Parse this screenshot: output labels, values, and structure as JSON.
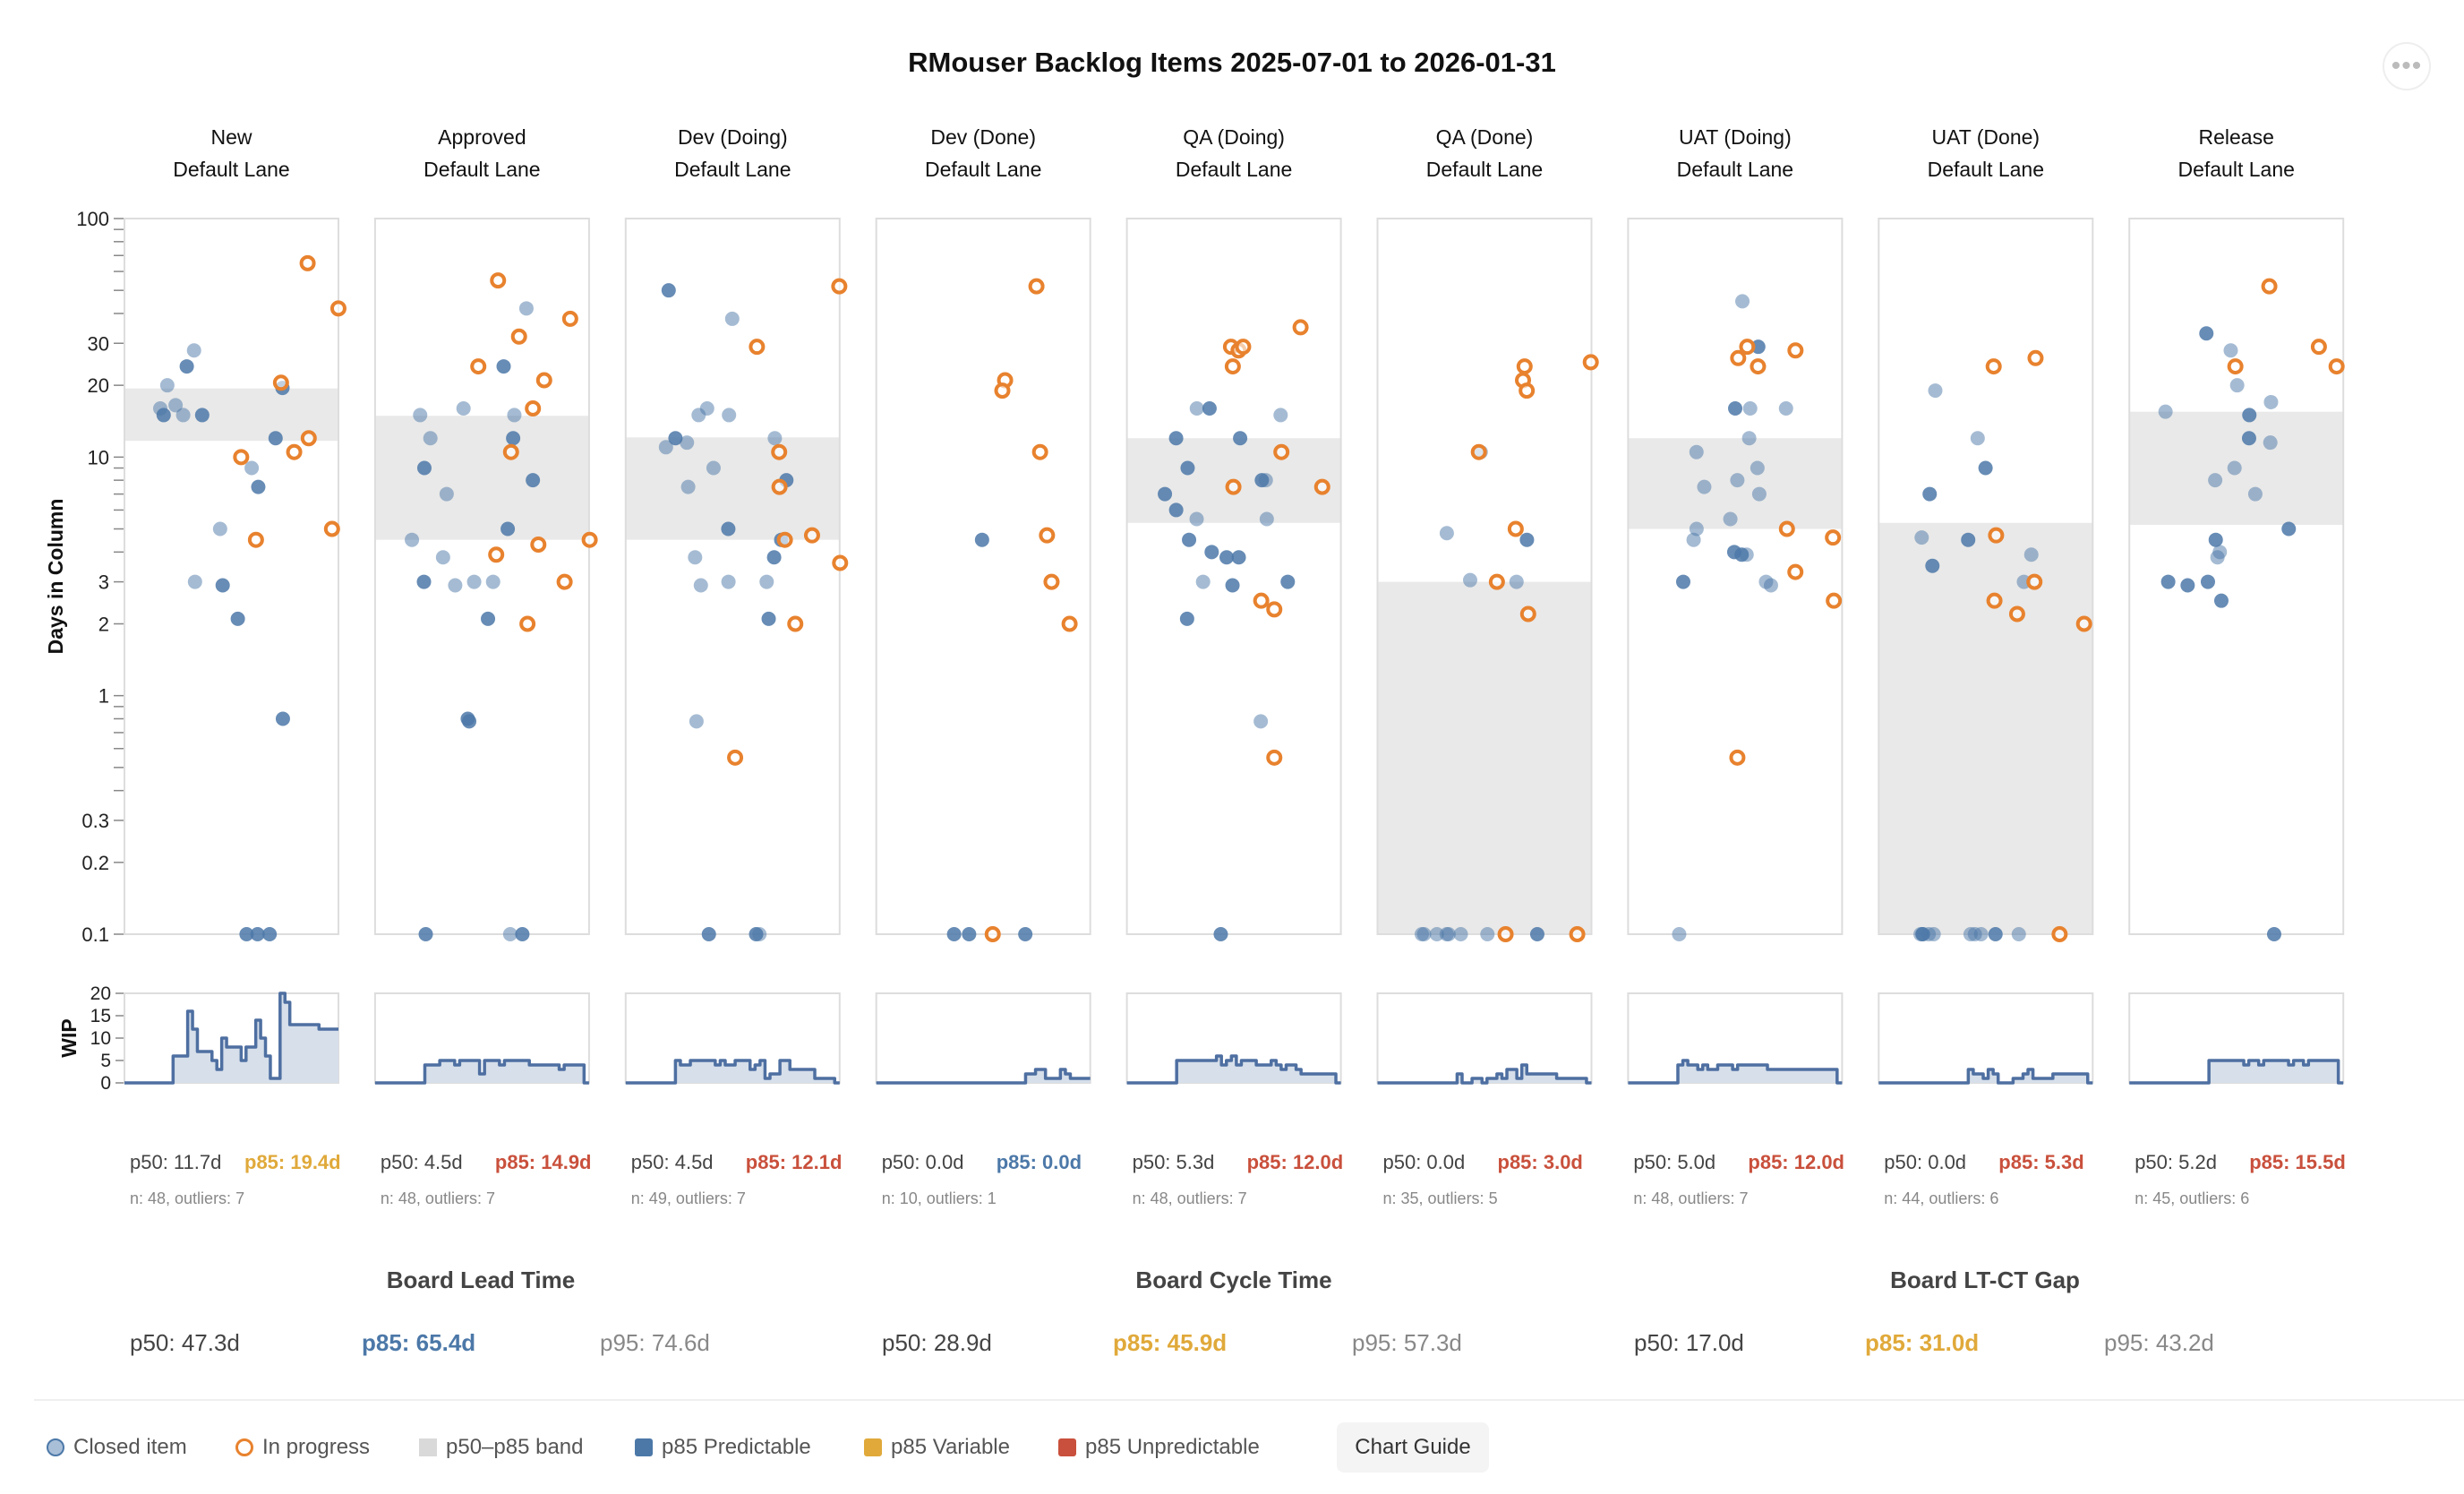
{
  "chart_data": {
    "type": "scatter",
    "title": "RMouser Backlog Items 2025-07-01 to 2026-01-31",
    "ylabel": "Days in Column",
    "yscale": "log",
    "ylim": [
      0.1,
      100
    ],
    "yticks": [
      "100",
      "30",
      "20",
      "10",
      "3",
      "2",
      "1",
      "0.3",
      "0.2",
      "0.1"
    ],
    "wip_label": "WIP",
    "wip_ylim": [
      0,
      20
    ],
    "wip_ticks": [
      "20",
      "15",
      "10",
      "5",
      "0"
    ],
    "colors": {
      "closed": "#4c78a8",
      "in_progress": "#e8822e",
      "band": "#e9e9e9",
      "predictable": "#4c78a8",
      "variable": "#e0a93a",
      "unpredictable": "#c9503c",
      "wip": "#4e6fa1"
    },
    "panels": [
      {
        "column": "New",
        "lane": "Default Lane",
        "p50": 11.7,
        "p85": 19.4,
        "p50_label": "p50: 11.7d",
        "p85_label": "p85: 19.4d",
        "p85_class": "variable",
        "n_label": "n: 48, outliers: 7",
        "closed": [
          16,
          15,
          15,
          28,
          24,
          20,
          19.5,
          16.5,
          15,
          12,
          9,
          7.5,
          5,
          3,
          2.9,
          2.1,
          0.8,
          0.1,
          0.1,
          0.1
        ],
        "in_progress": [
          65,
          42,
          20.5,
          12,
          10,
          10.5,
          5,
          4.5
        ],
        "wip": [
          0,
          0,
          0,
          0,
          0,
          0,
          0,
          0,
          0,
          0,
          6,
          6,
          6,
          16,
          12,
          7,
          7,
          7,
          5,
          3,
          10,
          8,
          8,
          8,
          5,
          8,
          8,
          14,
          10,
          6,
          1,
          1,
          20,
          18,
          13,
          13,
          13,
          13,
          13,
          13,
          12,
          12,
          12,
          12
        ]
      },
      {
        "column": "Approved",
        "lane": "Default Lane",
        "p50": 4.5,
        "p85": 14.9,
        "p50_label": "p50: 4.5d",
        "p85_label": "p85: 14.9d",
        "p85_class": "unpredictable",
        "n_label": "n: 48, outliers: 7",
        "closed": [
          42,
          24,
          15,
          16,
          15,
          12,
          12,
          9,
          8,
          7,
          5,
          4.5,
          3.8,
          3,
          3,
          3,
          2.9,
          2.1,
          0.8,
          0.78,
          0.1,
          0.1,
          0.1
        ],
        "in_progress": [
          38,
          55,
          32,
          21,
          16,
          10.5,
          4.5,
          4.3,
          3.9,
          3,
          2,
          24
        ],
        "wip": [
          0,
          0,
          0,
          0,
          0,
          0,
          0,
          0,
          0,
          0,
          4,
          4,
          4,
          5,
          5,
          5,
          4,
          5,
          5,
          5,
          5,
          2,
          5,
          5,
          5,
          4,
          5,
          5,
          5,
          5,
          5,
          4,
          4,
          4,
          4,
          4,
          4,
          3,
          4,
          4,
          4,
          4,
          0
        ]
      },
      {
        "column": "Dev (Doing)",
        "lane": "Default Lane",
        "p50": 4.5,
        "p85": 12.1,
        "p50_label": "p50: 4.5d",
        "p85_label": "p85: 12.1d",
        "p85_class": "unpredictable",
        "n_label": "n: 49, outliers: 7",
        "closed": [
          50,
          38,
          16,
          15,
          15,
          12,
          11,
          12,
          11.5,
          9,
          8,
          7.5,
          5,
          4.5,
          3.8,
          3.8,
          3,
          3,
          2.9,
          2.1,
          0.78,
          0.1,
          0.1,
          0.1
        ],
        "in_progress": [
          52,
          29,
          10.5,
          7.5,
          4.7,
          4.5,
          3.6,
          2,
          0.55
        ],
        "wip": [
          0,
          0,
          0,
          0,
          0,
          0,
          0,
          0,
          0,
          0,
          5,
          4,
          4,
          5,
          5,
          5,
          5,
          5,
          4,
          5,
          4,
          4,
          5,
          5,
          5,
          3,
          4,
          5,
          1,
          2,
          2,
          5,
          5,
          3,
          3,
          3,
          3,
          3,
          1,
          1,
          1,
          1,
          0
        ]
      },
      {
        "column": "Dev (Done)",
        "lane": "Default Lane",
        "p50": 0.0,
        "p85": 0.0,
        "p50_label": "p50: 0.0d",
        "p85_label": "p85: 0.0d",
        "p85_class": "predictable",
        "n_label": "n: 10, outliers: 1",
        "closed": [
          4.5,
          0.1,
          0.1,
          0.1
        ],
        "in_progress": [
          52,
          21,
          19,
          10.5,
          4.7,
          3,
          2,
          0.1
        ],
        "wip": [
          0,
          0,
          0,
          0,
          0,
          0,
          0,
          0,
          0,
          0,
          0,
          0,
          0,
          0,
          0,
          0,
          0,
          0,
          0,
          0,
          0,
          0,
          0,
          0,
          0,
          0,
          0,
          0,
          0,
          0,
          2,
          2,
          3,
          3,
          1,
          1,
          1,
          3,
          2,
          1,
          1,
          1,
          1
        ]
      },
      {
        "column": "QA (Doing)",
        "lane": "Default Lane",
        "p50": 5.3,
        "p85": 12.0,
        "p50_label": "p50: 5.3d",
        "p85_label": "p85: 12.0d",
        "p85_class": "unpredictable",
        "n_label": "n: 48, outliers: 7",
        "closed": [
          16,
          16,
          15,
          12,
          12,
          9,
          8,
          8,
          7,
          6,
          5.5,
          5.5,
          4.5,
          4,
          3.8,
          3.8,
          3,
          3,
          2.9,
          2.1,
          0.78,
          0.1
        ],
        "in_progress": [
          35,
          29,
          28,
          29,
          24,
          10.5,
          7.5,
          7.5,
          2.5,
          2.3,
          0.55
        ],
        "wip": [
          0,
          0,
          0,
          0,
          0,
          0,
          0,
          0,
          0,
          0,
          5,
          5,
          5,
          5,
          5,
          5,
          5,
          5,
          6,
          4,
          5,
          6,
          4,
          5,
          5,
          5,
          4,
          4,
          4,
          5,
          4,
          3,
          4,
          4,
          3,
          2,
          2,
          2,
          2,
          2,
          2,
          2,
          0
        ]
      },
      {
        "column": "QA (Done)",
        "lane": "Default Lane",
        "p50": 0.0,
        "p85": 3.0,
        "p50_label": "p50: 0.0d",
        "p85_label": "p85: 3.0d",
        "p85_class": "unpredictable",
        "n_label": "n: 35, outliers: 5",
        "closed": [
          3.05,
          3,
          10.5,
          4.5,
          4.8,
          0.1,
          0.1,
          0.1,
          0.1,
          0.1,
          0.1,
          0.1,
          0.1
        ],
        "in_progress": [
          25,
          21,
          19,
          24,
          10.5,
          5,
          3,
          2.2,
          0.1,
          0.1
        ],
        "wip": [
          0,
          0,
          0,
          0,
          0,
          0,
          0,
          0,
          0,
          0,
          0,
          0,
          0,
          0,
          0,
          0,
          2,
          0,
          0,
          1,
          1,
          0,
          1,
          1,
          2,
          1,
          3,
          3,
          1,
          4,
          2,
          2,
          2,
          2,
          2,
          2,
          1,
          1,
          1,
          1,
          1,
          1,
          0
        ]
      },
      {
        "column": "UAT (Doing)",
        "lane": "Default Lane",
        "p50": 5.0,
        "p85": 12.0,
        "p50_label": "p50: 5.0d",
        "p85_label": "p85: 12.0d",
        "p85_class": "unpredictable",
        "n_label": "n: 48, outliers: 7",
        "closed": [
          45,
          29,
          16,
          16,
          16,
          12,
          10.5,
          9,
          8,
          7.5,
          7,
          5.5,
          5,
          4.5,
          4,
          3.9,
          3.9,
          3,
          3,
          2.9,
          0.1
        ],
        "in_progress": [
          28,
          29,
          26,
          24,
          5,
          4.6,
          3.3,
          2.5,
          0.55
        ],
        "wip": [
          0,
          0,
          0,
          0,
          0,
          0,
          0,
          0,
          0,
          0,
          4,
          5,
          4,
          4,
          3,
          4,
          3,
          3,
          4,
          4,
          4,
          3,
          4,
          4,
          4,
          4,
          4,
          4,
          3,
          3,
          3,
          3,
          3,
          3,
          3,
          3,
          3,
          3,
          3,
          3,
          3,
          3,
          0
        ]
      },
      {
        "column": "UAT (Done)",
        "lane": "Default Lane",
        "p50": 0.0,
        "p85": 5.3,
        "p50_label": "p50: 0.0d",
        "p85_label": "p85: 5.3d",
        "p85_class": "unpredictable",
        "n_label": "n: 44, outliers: 6",
        "closed": [
          19,
          12,
          9,
          7,
          4.5,
          3.9,
          3.5,
          4.6,
          3,
          0.1,
          0.1,
          0.1,
          0.1,
          0.1,
          0.1,
          0.1,
          0.1,
          0.1,
          0.1
        ],
        "in_progress": [
          26,
          24,
          4.7,
          3,
          2.5,
          2.2,
          2,
          0.1
        ],
        "wip": [
          0,
          0,
          0,
          0,
          0,
          0,
          0,
          0,
          0,
          0,
          0,
          0,
          0,
          0,
          0,
          0,
          0,
          0,
          3,
          2,
          2,
          1,
          3,
          2,
          0,
          0,
          0,
          1,
          1,
          2,
          3,
          1,
          1,
          1,
          1,
          2,
          2,
          2,
          2,
          2,
          2,
          2,
          0
        ]
      },
      {
        "column": "Release",
        "lane": "Default Lane",
        "p50": 5.2,
        "p85": 15.5,
        "p50_label": "p50: 5.2d",
        "p85_label": "p85: 15.5d",
        "p85_class": "unpredictable",
        "n_label": "n: 45, outliers: 6",
        "closed": [
          33,
          28,
          20,
          17,
          15.5,
          15,
          12,
          11.5,
          9,
          8,
          7,
          5,
          4.5,
          4,
          3.8,
          3,
          3,
          2.9,
          2.5,
          0.1
        ],
        "in_progress": [
          52,
          29,
          24,
          24
        ],
        "wip": [
          0,
          0,
          0,
          0,
          0,
          0,
          0,
          0,
          0,
          0,
          0,
          0,
          0,
          0,
          0,
          0,
          5,
          5,
          5,
          5,
          5,
          5,
          5,
          4,
          5,
          5,
          4,
          5,
          5,
          5,
          5,
          5,
          4,
          5,
          5,
          4,
          5,
          5,
          5,
          5,
          5,
          5,
          0
        ]
      }
    ],
    "board": [
      {
        "title": "Board Lead Time",
        "p50": "p50: 47.3d",
        "p85": "p85: 65.4d",
        "p95": "p95: 74.6d",
        "p85_class": "predictable"
      },
      {
        "title": "Board Cycle Time",
        "p50": "p50: 28.9d",
        "p85": "p85: 45.9d",
        "p95": "p95: 57.3d",
        "p85_class": "variable"
      },
      {
        "title": "Board LT-CT Gap",
        "p50": "p50: 17.0d",
        "p85": "p85: 31.0d",
        "p95": "p95: 43.2d",
        "p85_class": "variable"
      }
    ]
  },
  "menu": {
    "icon": "more-horizontal-icon",
    "label": "•••"
  },
  "legend": {
    "closed": "Closed item",
    "in_progress": "In progress",
    "band": "p50–p85 band",
    "predictable": "p85 Predictable",
    "variable": "p85 Variable",
    "unpredictable": "p85 Unpredictable"
  },
  "chart_guide_label": "Chart Guide"
}
